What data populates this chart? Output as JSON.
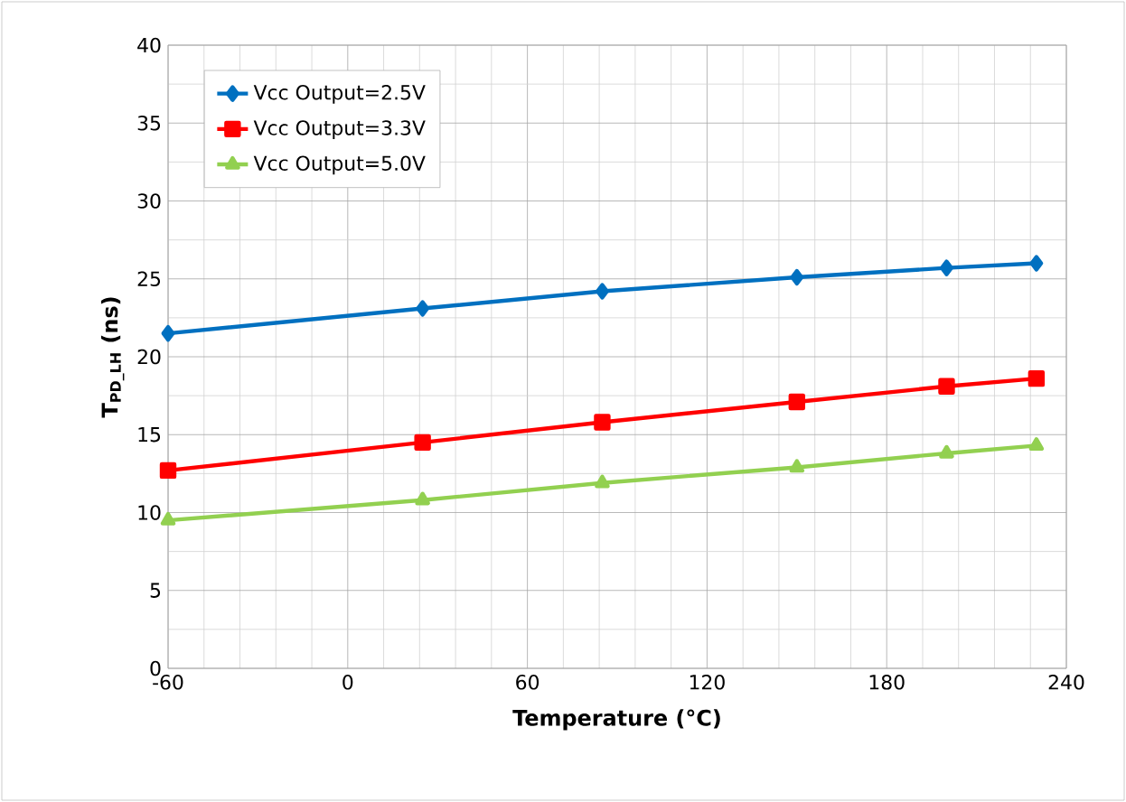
{
  "chart_data": {
    "type": "line",
    "xlabel": "Temperature (°C)",
    "ylabel": "T$_{PD_LH}$ (ns)",
    "x": [
      -60,
      25,
      85,
      150,
      200,
      230
    ],
    "series": [
      {
        "name": "Vcc Output=2.5V",
        "color": "#0070c0",
        "marker": "diamond",
        "values": [
          21.5,
          23.1,
          24.2,
          25.1,
          25.7,
          26.0
        ]
      },
      {
        "name": "Vcc Output=3.3V",
        "color": "#ff0000",
        "marker": "square",
        "values": [
          12.7,
          14.5,
          15.8,
          17.1,
          18.1,
          18.6
        ]
      },
      {
        "name": "Vcc Output=5.0V",
        "color": "#92d050",
        "marker": "triangle",
        "values": [
          9.5,
          10.8,
          11.9,
          12.9,
          13.8,
          14.3
        ]
      }
    ],
    "xlim": [
      -60,
      240
    ],
    "xticks": [
      -60,
      0,
      60,
      120,
      180,
      240
    ],
    "ylim": [
      0,
      40
    ],
    "yticks": [
      0,
      5,
      10,
      15,
      20,
      25,
      30,
      35,
      40
    ],
    "grid": true,
    "legend": "top left",
    "line_style": "solid"
  }
}
